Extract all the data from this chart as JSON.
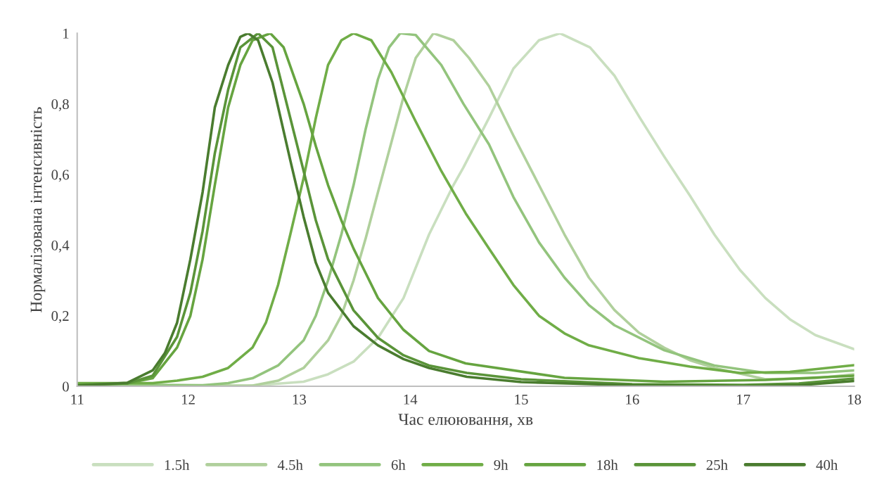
{
  "chart_data": {
    "type": "line",
    "xlabel": "Час елюювання, хв",
    "ylabel": "Нормалізована інтенсивність",
    "xlim": [
      11,
      18
    ],
    "xticks": [
      11,
      12,
      13,
      14,
      15,
      16,
      17,
      18
    ],
    "ylim": [
      0,
      1
    ],
    "yticks": [
      0,
      {
        "value": 0.2,
        "label": "0,2"
      },
      {
        "value": 0.4,
        "label": "0,4"
      },
      {
        "value": 0.6,
        "label": "0,6"
      },
      {
        "value": 0.8,
        "label": "0,8"
      },
      1
    ],
    "grid": false,
    "legend": "bottom",
    "marker": "none",
    "line_style": "solid",
    "series": [
      {
        "name": "1.5h",
        "color": "#c9dfbf",
        "x": [
          11,
          12,
          12.5,
          13.04,
          13.26,
          13.49,
          13.71,
          13.94,
          14.17,
          14.39,
          14.48,
          14.71,
          14.93,
          15.16,
          15.35,
          15.62,
          15.84,
          16.07,
          16.29,
          16.52,
          16.74,
          16.97,
          17.2,
          17.42,
          17.65,
          18
        ],
        "values": [
          0,
          0,
          0,
          0.013,
          0.034,
          0.07,
          0.137,
          0.25,
          0.43,
          0.57,
          0.62,
          0.76,
          0.9,
          0.98,
          1.0,
          0.96,
          0.88,
          0.76,
          0.65,
          0.54,
          0.43,
          0.33,
          0.25,
          0.19,
          0.145,
          0.105
        ]
      },
      {
        "name": "4.5h",
        "color": "#b0d09c",
        "x": [
          11,
          12,
          12.58,
          12.81,
          13.04,
          13.26,
          13.38,
          13.49,
          13.6,
          13.71,
          13.83,
          13.94,
          14.05,
          14.21,
          14.39,
          14.53,
          14.71,
          14.93,
          15.16,
          15.39,
          15.61,
          15.84,
          16.06,
          16.29,
          16.52,
          16.74,
          17.2,
          17.65,
          18
        ],
        "values": [
          0.003,
          0.002,
          0.002,
          0.016,
          0.052,
          0.13,
          0.2,
          0.3,
          0.42,
          0.55,
          0.69,
          0.82,
          0.93,
          1.0,
          0.98,
          0.93,
          0.85,
          0.71,
          0.57,
          0.43,
          0.308,
          0.216,
          0.152,
          0.109,
          0.074,
          0.052,
          0.02,
          0.023,
          0.034
        ]
      },
      {
        "name": "6h",
        "color": "#93c47d",
        "x": [
          11,
          12.13,
          12.36,
          12.58,
          12.81,
          13.04,
          13.15,
          13.26,
          13.38,
          13.49,
          13.6,
          13.71,
          13.81,
          13.91,
          14.05,
          14.28,
          14.48,
          14.71,
          14.93,
          15.16,
          15.39,
          15.61,
          15.84,
          16.29,
          16.74,
          17.2,
          17.65,
          18
        ],
        "values": [
          0.005,
          0.003,
          0.009,
          0.023,
          0.059,
          0.13,
          0.2,
          0.3,
          0.43,
          0.57,
          0.73,
          0.87,
          0.96,
          1.0,
          0.995,
          0.91,
          0.8,
          0.685,
          0.536,
          0.408,
          0.308,
          0.23,
          0.173,
          0.102,
          0.059,
          0.038,
          0.038,
          0.045
        ]
      },
      {
        "name": "9h",
        "color": "#70ad47",
        "x": [
          11,
          11.68,
          11.9,
          12.13,
          12.36,
          12.58,
          12.7,
          12.81,
          12.92,
          13.04,
          13.15,
          13.26,
          13.38,
          13.49,
          13.65,
          13.83,
          14.05,
          14.28,
          14.5,
          14.71,
          14.93,
          15.16,
          15.39,
          15.61,
          16.06,
          16.52,
          16.97,
          17.42,
          18
        ],
        "values": [
          0.009,
          0.009,
          0.016,
          0.027,
          0.052,
          0.11,
          0.18,
          0.287,
          0.43,
          0.59,
          0.76,
          0.91,
          0.98,
          1.0,
          0.98,
          0.89,
          0.75,
          0.61,
          0.49,
          0.39,
          0.287,
          0.2,
          0.15,
          0.116,
          0.08,
          0.056,
          0.038,
          0.041,
          0.06
        ]
      },
      {
        "name": "18h",
        "color": "#66a440",
        "x": [
          11,
          11.45,
          11.68,
          11.9,
          12.02,
          12.13,
          12.24,
          12.36,
          12.47,
          12.58,
          12.74,
          12.86,
          13.04,
          13.15,
          13.26,
          13.38,
          13.49,
          13.71,
          13.94,
          14.17,
          14.5,
          15.39,
          16.29,
          17.2,
          18
        ],
        "values": [
          0.005,
          0.008,
          0.023,
          0.11,
          0.2,
          0.36,
          0.57,
          0.79,
          0.91,
          0.98,
          1.0,
          0.96,
          0.8,
          0.68,
          0.57,
          0.47,
          0.39,
          0.25,
          0.16,
          0.1,
          0.065,
          0.024,
          0.013,
          0.018,
          0.03
        ]
      },
      {
        "name": "25h",
        "color": "#5a9439",
        "x": [
          11,
          11.45,
          11.68,
          11.9,
          12.02,
          12.13,
          12.24,
          12.36,
          12.47,
          12.63,
          12.76,
          12.92,
          13.04,
          13.15,
          13.26,
          13.49,
          13.71,
          13.94,
          14.17,
          14.51,
          15,
          16,
          17,
          17.5,
          18
        ],
        "values": [
          0.003,
          0.008,
          0.03,
          0.14,
          0.265,
          0.44,
          0.66,
          0.84,
          0.96,
          1.0,
          0.96,
          0.76,
          0.61,
          0.47,
          0.36,
          0.215,
          0.137,
          0.088,
          0.059,
          0.038,
          0.02,
          0.006,
          0.004,
          0.008,
          0.022
        ]
      },
      {
        "name": "40h",
        "color": "#4a7c2f",
        "x": [
          11,
          11.45,
          11.68,
          11.79,
          11.9,
          12.02,
          12.13,
          12.24,
          12.36,
          12.47,
          12.54,
          12.63,
          12.76,
          12.92,
          13.04,
          13.15,
          13.26,
          13.49,
          13.71,
          13.94,
          14.17,
          14.51,
          15,
          16,
          17,
          17.5,
          18
        ],
        "values": [
          0.002,
          0.01,
          0.045,
          0.094,
          0.18,
          0.36,
          0.55,
          0.79,
          0.91,
          0.99,
          1.0,
          0.98,
          0.86,
          0.64,
          0.48,
          0.35,
          0.265,
          0.17,
          0.116,
          0.077,
          0.052,
          0.027,
          0.012,
          0.003,
          0.0,
          0.003,
          0.015
        ]
      }
    ]
  }
}
